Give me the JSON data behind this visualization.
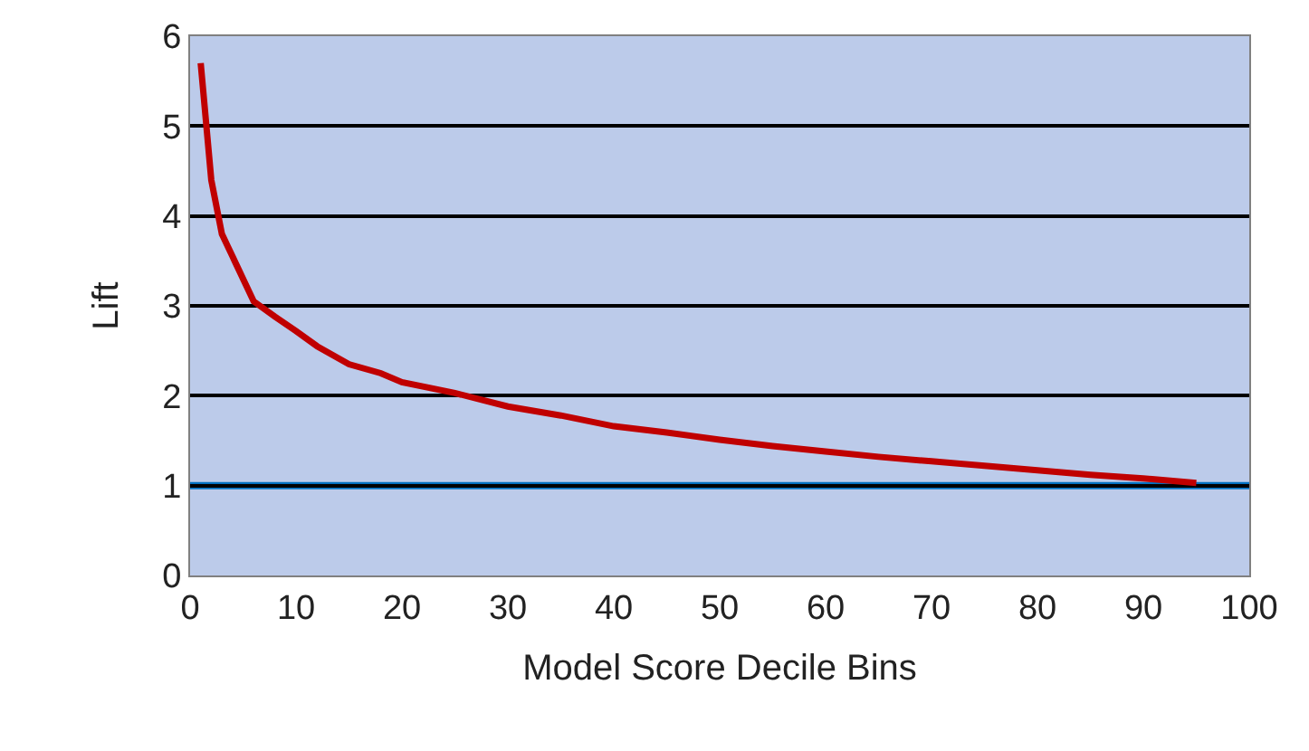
{
  "chart_data": {
    "type": "line",
    "xlabel": "Model Score Decile Bins",
    "ylabel": "Lift",
    "x": [
      1,
      2,
      3,
      4,
      6,
      8,
      10,
      12,
      15,
      18,
      20,
      25,
      30,
      35,
      40,
      45,
      50,
      55,
      60,
      65,
      70,
      75,
      80,
      85,
      90,
      95
    ],
    "series": [
      {
        "color": "#c00000",
        "values": [
          5.7,
          4.4,
          3.8,
          3.55,
          3.05,
          2.88,
          2.72,
          2.55,
          2.35,
          2.25,
          2.15,
          2.03,
          1.88,
          1.78,
          1.66,
          1.59,
          1.51,
          1.44,
          1.38,
          1.32,
          1.27,
          1.22,
          1.17,
          1.12,
          1.08,
          1.03
        ]
      }
    ],
    "xlim": [
      0,
      100
    ],
    "xticks": [
      0,
      10,
      20,
      30,
      40,
      50,
      60,
      70,
      80,
      90,
      100
    ],
    "ylim": [
      0,
      6
    ],
    "yticks": [
      0,
      1,
      2,
      3,
      4,
      5,
      6
    ],
    "ref_lines": [
      {
        "axis": "y",
        "value": 1,
        "color": "#0070c0"
      }
    ],
    "grid": "y",
    "legend": false,
    "marker": "none",
    "line_style": "solid"
  }
}
